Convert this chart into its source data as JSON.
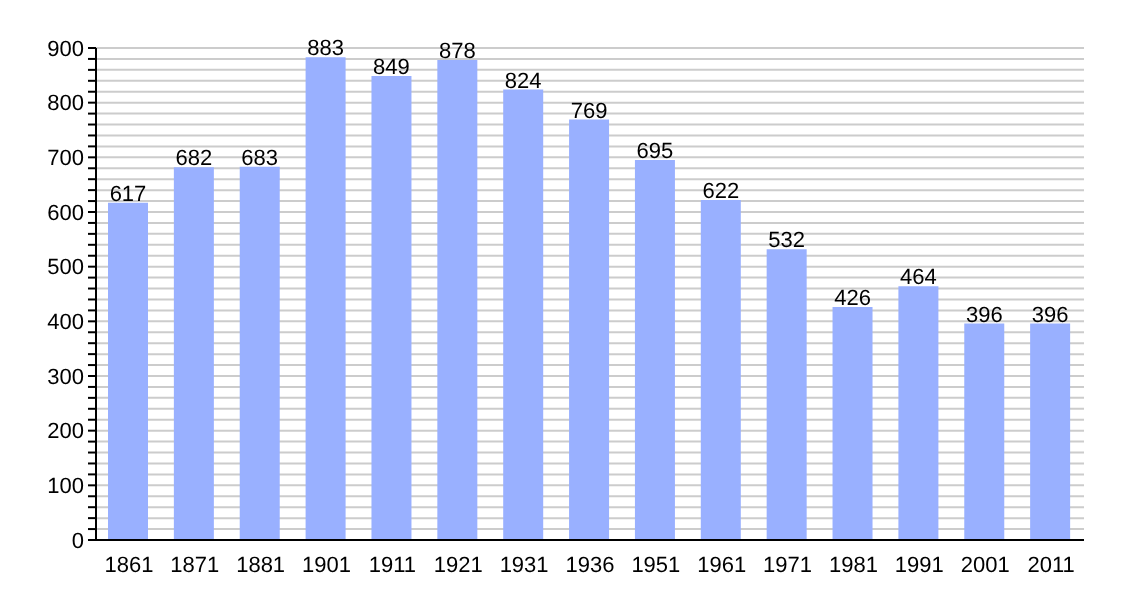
{
  "chart_data": {
    "type": "bar",
    "categories": [
      "1861",
      "1871",
      "1881",
      "1901",
      "1911",
      "1921",
      "1931",
      "1936",
      "1951",
      "1961",
      "1971",
      "1981",
      "1991",
      "2001",
      "2011"
    ],
    "values": [
      617,
      682,
      683,
      883,
      849,
      878,
      824,
      769,
      695,
      622,
      532,
      426,
      464,
      396,
      396
    ],
    "color": "#99b0ff",
    "data_labels": true,
    "grid": "y",
    "ylim": [
      0,
      900
    ],
    "yticks": [
      0,
      {
        "value": 20,
        "label": null
      },
      {
        "value": 40,
        "label": null
      },
      {
        "value": 60,
        "label": null
      },
      {
        "value": 80,
        "label": null
      },
      100,
      {
        "value": 120,
        "label": null
      },
      {
        "value": 140,
        "label": null
      },
      {
        "value": 160,
        "label": null
      },
      {
        "value": 180,
        "label": null
      },
      200,
      {
        "value": 220,
        "label": null
      },
      {
        "value": 240,
        "label": null
      },
      {
        "value": 260,
        "label": null
      },
      {
        "value": 280,
        "label": null
      },
      300,
      {
        "value": 320,
        "label": null
      },
      {
        "value": 340,
        "label": null
      },
      {
        "value": 360,
        "label": null
      },
      {
        "value": 380,
        "label": null
      },
      400,
      {
        "value": 420,
        "label": null
      },
      {
        "value": 440,
        "label": null
      },
      {
        "value": 460,
        "label": null
      },
      {
        "value": 480,
        "label": null
      },
      500,
      {
        "value": 520,
        "label": null
      },
      {
        "value": 540,
        "label": null
      },
      {
        "value": 560,
        "label": null
      },
      {
        "value": 580,
        "label": null
      },
      600,
      {
        "value": 620,
        "label": null
      },
      {
        "value": 640,
        "label": null
      },
      {
        "value": 660,
        "label": null
      },
      {
        "value": 680,
        "label": null
      },
      700,
      {
        "value": 720,
        "label": null
      },
      {
        "value": 740,
        "label": null
      },
      {
        "value": 760,
        "label": null
      },
      {
        "value": 780,
        "label": null
      },
      800,
      {
        "value": 820,
        "label": null
      },
      {
        "value": 840,
        "label": null
      },
      {
        "value": 860,
        "label": null
      },
      {
        "value": 880,
        "label": null
      },
      900
    ]
  }
}
